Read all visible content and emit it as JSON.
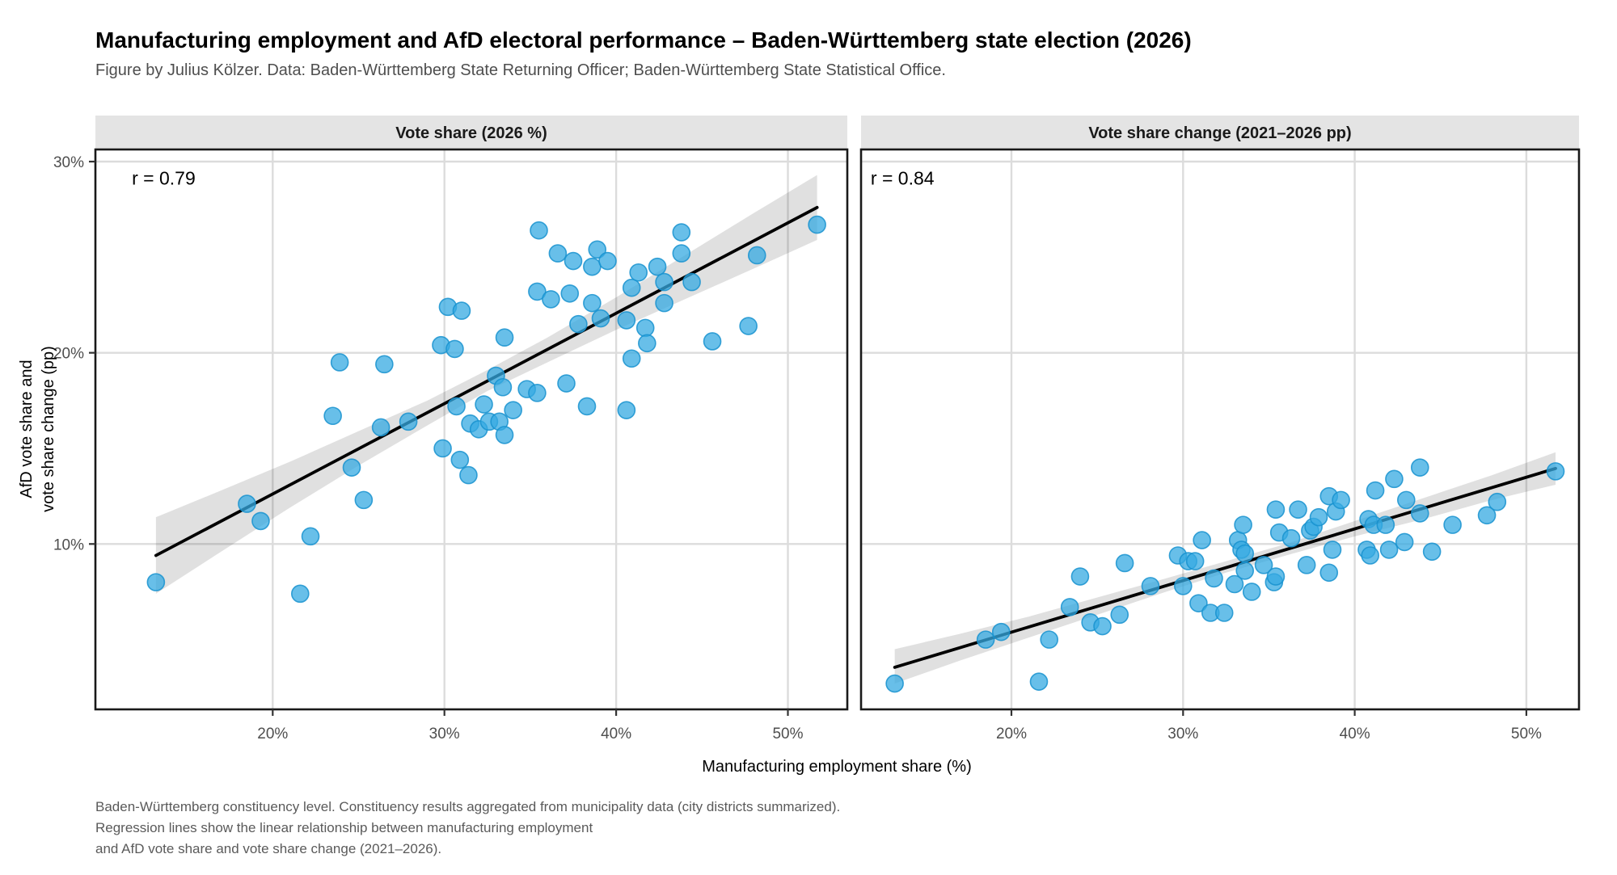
{
  "title": "Manufacturing employment and AfD electoral performance – Baden-Württemberg state election (2026)",
  "subtitle": "Figure by Julius Kölzer. Data: Baden-Württemberg State Returning Officer; Baden-Württemberg State Statistical Office.",
  "caption_lines": [
    "Baden-Württemberg constituency level. Constituency results aggregated from municipality data (city districts summarized).",
    "Regression lines show the linear relationship between manufacturing employment",
    "and AfD vote share and vote share change (2021–2026)."
  ],
  "axes": {
    "x_title": "Manufacturing employment share (%)",
    "y_title_line1": "AfD vote share and",
    "y_title_line2": "vote share change (pp)"
  },
  "colors": {
    "point_fill": "#36a9e1",
    "point_stroke": "#1792cf",
    "regression_line": "#000000",
    "ci_ribbon": "rgba(0,0,0,0.12)",
    "strip_bg": "#e4e4e4",
    "strip_text": "#1a1a1a",
    "panel_bg": "#ffffff",
    "gridline": "#dcdcdc",
    "panel_border": "#191919",
    "tick_mark": "#333333",
    "tick_text": "#4e4e4e"
  },
  "chart_data": [
    {
      "type": "scatter",
      "facet_label": "Vote share (2026 %)",
      "r_annotation": {
        "text": "r = 0.79",
        "x": 11.8,
        "y": 28.8
      },
      "xlabel": "Manufacturing employment share (%)",
      "ylabel": "AfD vote share and vote share change (pp)",
      "xlim": [
        9.7,
        53.5
      ],
      "ylim": [
        1.4,
        30.6
      ],
      "grid": "major",
      "legend": "none",
      "x_ticks": [
        {
          "value": 20,
          "label": "20%"
        },
        {
          "value": 30,
          "label": "30%"
        },
        {
          "value": 40,
          "label": "40%"
        },
        {
          "value": 50,
          "label": "50%"
        }
      ],
      "y_ticks": [
        {
          "value": 10,
          "label": "10%"
        },
        {
          "value": 20,
          "label": "20%"
        },
        {
          "value": 30,
          "label": "30%"
        }
      ],
      "regression_line": {
        "x": [
          13.2,
          51.7
        ],
        "y": [
          9.4,
          27.6
        ]
      },
      "ci_ribbon": [
        [
          13.2,
          7.4,
          11.4
        ],
        [
          17,
          9.6,
          12.8
        ],
        [
          21,
          11.9,
          14.3
        ],
        [
          25,
          14.1,
          15.9
        ],
        [
          29,
          16.2,
          17.5
        ],
        [
          32.5,
          18.0,
          19.1
        ],
        [
          36,
          19.5,
          20.8
        ],
        [
          40,
          21.2,
          22.9
        ],
        [
          44,
          22.8,
          25.1
        ],
        [
          48,
          24.4,
          27.3
        ],
        [
          51.7,
          25.9,
          29.3
        ]
      ],
      "points": [
        [
          13.2,
          8.0
        ],
        [
          18.5,
          12.1
        ],
        [
          19.3,
          11.2
        ],
        [
          21.6,
          7.4
        ],
        [
          22.2,
          10.4
        ],
        [
          23.5,
          16.7
        ],
        [
          23.9,
          19.5
        ],
        [
          24.6,
          14.0
        ],
        [
          25.3,
          12.3
        ],
        [
          26.3,
          16.1
        ],
        [
          26.5,
          19.4
        ],
        [
          27.9,
          16.4
        ],
        [
          29.8,
          20.4
        ],
        [
          29.9,
          15.0
        ],
        [
          30.2,
          22.4
        ],
        [
          30.6,
          20.2
        ],
        [
          30.7,
          17.2
        ],
        [
          30.9,
          14.4
        ],
        [
          31.0,
          22.2
        ],
        [
          31.4,
          13.6
        ],
        [
          31.5,
          16.3
        ],
        [
          32.0,
          16.0
        ],
        [
          32.3,
          17.3
        ],
        [
          32.6,
          16.4
        ],
        [
          33.0,
          18.8
        ],
        [
          33.2,
          16.4
        ],
        [
          33.4,
          18.2
        ],
        [
          33.5,
          15.7
        ],
        [
          33.5,
          20.8
        ],
        [
          34.0,
          17.0
        ],
        [
          34.8,
          18.1
        ],
        [
          35.4,
          17.9
        ],
        [
          35.4,
          23.2
        ],
        [
          35.5,
          26.4
        ],
        [
          36.2,
          22.8
        ],
        [
          36.6,
          25.2
        ],
        [
          37.1,
          18.4
        ],
        [
          37.3,
          23.1
        ],
        [
          37.5,
          24.8
        ],
        [
          37.8,
          21.5
        ],
        [
          38.3,
          17.2
        ],
        [
          38.6,
          22.6
        ],
        [
          38.6,
          24.5
        ],
        [
          38.9,
          25.4
        ],
        [
          39.1,
          21.8
        ],
        [
          39.5,
          24.8
        ],
        [
          40.6,
          17.0
        ],
        [
          40.6,
          21.7
        ],
        [
          40.9,
          19.7
        ],
        [
          40.9,
          23.4
        ],
        [
          41.3,
          24.2
        ],
        [
          41.7,
          21.3
        ],
        [
          41.8,
          20.5
        ],
        [
          42.4,
          24.5
        ],
        [
          42.8,
          22.6
        ],
        [
          42.8,
          23.7
        ],
        [
          43.8,
          25.2
        ],
        [
          43.8,
          26.3
        ],
        [
          44.4,
          23.7
        ],
        [
          45.6,
          20.6
        ],
        [
          47.7,
          21.4
        ],
        [
          48.2,
          25.1
        ],
        [
          51.7,
          26.7
        ]
      ]
    },
    {
      "type": "scatter",
      "facet_label": "Vote share change (2021–2026 pp)",
      "r_annotation": {
        "text": "r = 0.84",
        "x": 11.8,
        "y": 28.8
      },
      "xlabel": "Manufacturing employment share (%)",
      "ylabel": "AfD vote share and vote share change (pp)",
      "xlim": [
        11.2,
        53.1
      ],
      "ylim": [
        1.4,
        30.6
      ],
      "grid": "major",
      "legend": "none",
      "x_ticks": [
        {
          "value": 20,
          "label": "20%"
        },
        {
          "value": 30,
          "label": "30%"
        },
        {
          "value": 40,
          "label": "40%"
        },
        {
          "value": 50,
          "label": "50%"
        }
      ],
      "y_ticks": [
        {
          "value": 10,
          "label": "10%"
        },
        {
          "value": 20,
          "label": "20%"
        },
        {
          "value": 30,
          "label": "30%"
        }
      ],
      "regression_line": {
        "x": [
          13.2,
          51.7
        ],
        "y": [
          3.55,
          13.95
        ]
      },
      "ci_ribbon": [
        [
          13.2,
          2.7,
          4.5
        ],
        [
          17,
          3.9,
          5.3
        ],
        [
          21,
          5.1,
          6.2
        ],
        [
          25,
          6.3,
          7.2
        ],
        [
          29,
          7.5,
          8.2
        ],
        [
          32.5,
          8.5,
          9.1
        ],
        [
          36,
          9.4,
          10.0
        ],
        [
          40,
          10.4,
          11.2
        ],
        [
          44,
          11.3,
          12.4
        ],
        [
          48,
          12.3,
          13.6
        ],
        [
          51.7,
          13.1,
          14.8
        ]
      ],
      "points": [
        [
          13.2,
          2.7
        ],
        [
          18.5,
          5.0
        ],
        [
          19.4,
          5.4
        ],
        [
          21.6,
          2.8
        ],
        [
          22.2,
          5.0
        ],
        [
          23.4,
          6.7
        ],
        [
          24.0,
          8.3
        ],
        [
          24.6,
          5.9
        ],
        [
          25.3,
          5.7
        ],
        [
          26.3,
          6.3
        ],
        [
          26.6,
          9.0
        ],
        [
          28.1,
          7.8
        ],
        [
          29.7,
          9.4
        ],
        [
          30.0,
          7.8
        ],
        [
          30.3,
          9.1
        ],
        [
          30.7,
          9.1
        ],
        [
          30.9,
          6.9
        ],
        [
          31.1,
          10.2
        ],
        [
          31.6,
          6.4
        ],
        [
          31.8,
          8.2
        ],
        [
          32.4,
          6.4
        ],
        [
          33.0,
          7.9
        ],
        [
          33.2,
          10.2
        ],
        [
          33.4,
          9.7
        ],
        [
          33.5,
          11.0
        ],
        [
          33.6,
          9.5
        ],
        [
          33.6,
          8.6
        ],
        [
          34.0,
          7.5
        ],
        [
          34.7,
          8.9
        ],
        [
          35.3,
          8.0
        ],
        [
          35.4,
          8.3
        ],
        [
          35.4,
          11.8
        ],
        [
          35.6,
          10.6
        ],
        [
          36.3,
          10.3
        ],
        [
          36.7,
          11.8
        ],
        [
          37.2,
          8.9
        ],
        [
          37.4,
          10.7
        ],
        [
          37.6,
          10.9
        ],
        [
          37.9,
          11.4
        ],
        [
          38.5,
          8.5
        ],
        [
          38.5,
          12.5
        ],
        [
          38.7,
          9.7
        ],
        [
          38.9,
          11.7
        ],
        [
          39.2,
          12.3
        ],
        [
          40.7,
          9.7
        ],
        [
          40.8,
          11.3
        ],
        [
          40.9,
          9.4
        ],
        [
          41.1,
          11.0
        ],
        [
          41.2,
          12.8
        ],
        [
          41.8,
          11.0
        ],
        [
          42.0,
          9.7
        ],
        [
          42.3,
          13.4
        ],
        [
          42.9,
          10.1
        ],
        [
          43.0,
          12.3
        ],
        [
          43.8,
          11.6
        ],
        [
          43.8,
          14.0
        ],
        [
          44.5,
          9.6
        ],
        [
          45.7,
          11.0
        ],
        [
          47.7,
          11.5
        ],
        [
          48.3,
          12.2
        ],
        [
          51.7,
          13.8
        ]
      ]
    }
  ]
}
